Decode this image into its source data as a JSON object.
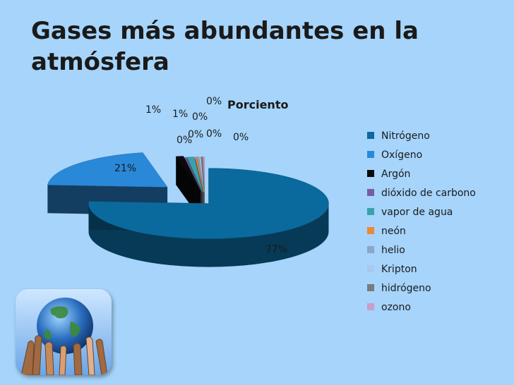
{
  "slide": {
    "title": "Gases más abundantes en la\natmósfera"
  },
  "chart_data": {
    "type": "pie",
    "title": "Porciento",
    "series": [
      {
        "name": "Porciento",
        "categories": [
          "Nitrógeno",
          "Oxígeno",
          "Argón",
          "dióxido de carbono",
          "vapor de agua",
          "neón",
          "helio",
          "Kripton",
          "hidrógeno",
          "ozono"
        ],
        "values": [
          77,
          21,
          1,
          0,
          1,
          0,
          0,
          0,
          0,
          0
        ],
        "labels": [
          "77%",
          "21%",
          "1%",
          "0%",
          "1%",
          "0%",
          "0%",
          "0%",
          "0%",
          "0%"
        ]
      }
    ],
    "colors": [
      "#0a6a9e",
      "#2a88d8",
      "#0a0a0a",
      "#7a5c9e",
      "#3aa0b0",
      "#e98a36",
      "#8aa6c9",
      "#a8c8ee",
      "#7a7a7a",
      "#c6a0c8"
    ],
    "legend_position": "right",
    "style": "3d-exploded"
  },
  "images": {
    "globe": "globe-with-hands-image"
  }
}
